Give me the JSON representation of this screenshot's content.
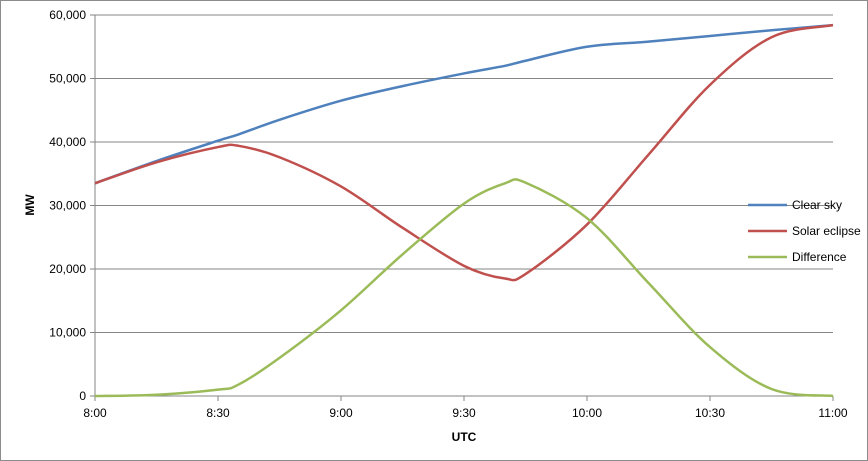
{
  "chart_data": {
    "type": "line",
    "title": "",
    "xlabel": "UTC",
    "ylabel": "MW",
    "ylim": [
      0,
      60000
    ],
    "xlim": [
      "8:00",
      "11:00"
    ],
    "x_ticks": [
      "8:00",
      "8:30",
      "9:00",
      "9:30",
      "10:00",
      "10:30",
      "11:00"
    ],
    "y_ticks": [
      "0",
      "10,000",
      "20,000",
      "30,000",
      "40,000",
      "50,000",
      "60,000"
    ],
    "grid": "horizontal",
    "legend_position": "right",
    "x": [
      "8:00",
      "8:15",
      "8:30",
      "8:35",
      "8:45",
      "9:00",
      "9:15",
      "9:30",
      "9:40",
      "9:45",
      "10:00",
      "10:15",
      "10:30",
      "10:45",
      "11:00"
    ],
    "series": [
      {
        "name": "Clear sky",
        "color": "#4f81bd",
        "values": [
          33500,
          37000,
          40200,
          41200,
          43500,
          46500,
          48800,
          50800,
          52000,
          52800,
          55000,
          55800,
          56700,
          57600,
          58400
        ]
      },
      {
        "name": "Solar eclipse",
        "color": "#c0504d",
        "values": [
          33500,
          36800,
          39200,
          39400,
          37600,
          33000,
          26500,
          20500,
          18500,
          19200,
          27000,
          38000,
          49000,
          56500,
          58400
        ]
      },
      {
        "name": "Difference",
        "color": "#9bbb59",
        "values": [
          0,
          200,
          1000,
          1800,
          6000,
          13500,
          22300,
          30300,
          33500,
          33600,
          28000,
          17800,
          7700,
          1100,
          0
        ]
      }
    ]
  }
}
